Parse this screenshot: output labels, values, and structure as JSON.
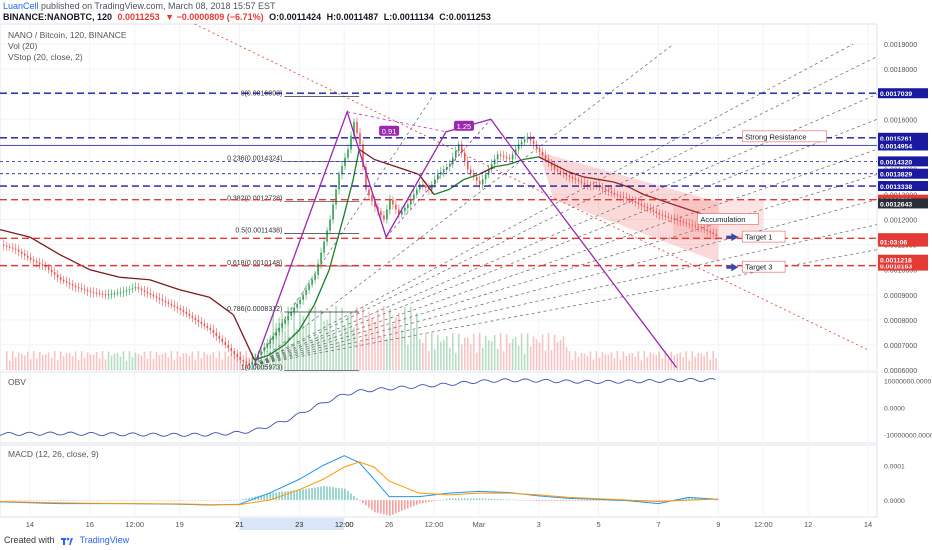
{
  "header": {
    "author": "LuanCell",
    "published_text": "published on TradingView.com, March 08, 2018 15:57 EST",
    "symbol_line": "BINANCE:NANOBTC, 120",
    "last": "0.0011253",
    "change": "▼ −0.0000809 (−6.71%)",
    "open": "O:0.0011424",
    "high": "H:0.0011487",
    "low": "L:0.0011134",
    "close": "C:0.0011253"
  },
  "legends": {
    "title": "NANO / Bitcoin, 120, BINANCE",
    "vol": "Vol (20)",
    "vstop": "VStop (20, close, 2)",
    "obv": "OBV",
    "macd": "MACD (12, 26, close, 9)"
  },
  "footer": {
    "created": "Created with",
    "brand": "TradingView"
  },
  "colors": {
    "up": "#2e9e4f",
    "down": "#ef5350",
    "vstop_up": "#1b7f2a",
    "vstop_down": "#7b1a1a",
    "fib": "#333333",
    "blue_level": "#1a1aa0",
    "red_level": "#e53935",
    "purple": "#9c27b0",
    "macd": "#2196f3",
    "signal": "#ff9800",
    "obv": "#3f51b5"
  },
  "chart_data": {
    "type": "candlestick",
    "y_axis": {
      "range": [
        0.0006,
        0.00198
      ],
      "ticks": [
        "0.0019000",
        "0.0018000",
        "0.0017000",
        "0.0016000",
        "0.0015000",
        "0.0014000",
        "0.0013000",
        "0.0012000",
        "0.0011000",
        "0.0010000",
        "0.0009000",
        "0.0008000",
        "0.0007000",
        "0.0006000"
      ],
      "tick_values": [
        0.0019,
        0.0018,
        0.0017,
        0.0016,
        0.0015,
        0.0014,
        0.0013,
        0.0012,
        0.0011,
        0.001,
        0.0009,
        0.0008,
        0.0007,
        0.0006
      ]
    },
    "x_axis": {
      "labels": [
        "14",
        "16",
        "12:00",
        "19",
        "21",
        "23",
        "12:00",
        "26",
        "12:00",
        "Mar",
        "3",
        "5",
        "7",
        "9",
        "12:00",
        "12",
        "14"
      ],
      "label_days": [
        14,
        16,
        17.5,
        19,
        21,
        23,
        24.5,
        26,
        27.5,
        29,
        31,
        33,
        35,
        37,
        38.5,
        40,
        42
      ],
      "range": [
        13,
        42.3
      ]
    },
    "close_path": {
      "days": [
        13.0,
        13.5,
        14.0,
        14.5,
        15.0,
        15.5,
        16.0,
        16.5,
        17.0,
        17.5,
        18.0,
        18.5,
        19.0,
        19.5,
        20.0,
        20.5,
        21.0,
        21.3,
        21.6,
        22.0,
        22.5,
        23.0,
        23.5,
        24.0,
        24.3,
        24.6,
        24.8,
        25.0,
        25.2,
        25.5,
        25.8,
        26.0,
        26.3,
        26.6,
        27.0,
        27.3,
        27.6,
        28.0,
        28.3,
        28.6,
        29.0,
        29.3,
        29.6,
        30.0,
        30.3,
        30.6,
        31.0,
        31.5,
        32.0,
        32.5,
        33.0,
        33.5,
        34.0,
        34.5,
        35.0,
        35.5,
        36.0,
        36.5,
        37.0
      ],
      "values": [
        0.0011,
        0.00108,
        0.00104,
        0.00101,
        0.00096,
        0.00093,
        0.00091,
        0.0009,
        0.00091,
        0.00093,
        0.0009,
        0.00087,
        0.00084,
        0.0008,
        0.00076,
        0.0007,
        0.00064,
        0.00062,
        0.00066,
        0.00072,
        0.0008,
        0.00088,
        0.00098,
        0.0012,
        0.00138,
        0.00148,
        0.00159,
        0.0015,
        0.00132,
        0.00125,
        0.0012,
        0.00128,
        0.00122,
        0.00126,
        0.00134,
        0.00132,
        0.00138,
        0.00142,
        0.0015,
        0.0014,
        0.00134,
        0.0014,
        0.00146,
        0.00144,
        0.0015,
        0.00153,
        0.00147,
        0.0014,
        0.00137,
        0.00134,
        0.00133,
        0.0013,
        0.00128,
        0.00125,
        0.00122,
        0.0012,
        0.00118,
        0.00116,
        0.00113
      ]
    },
    "vstop": {
      "days": [
        13.0,
        14.0,
        15.0,
        16.0,
        17.0,
        18.0,
        19.0,
        20.0,
        20.8,
        21.5,
        22.0,
        22.5,
        23.0,
        23.5,
        24.0,
        24.5,
        24.8,
        25.0,
        25.5,
        26.0,
        26.5,
        27.0,
        27.5,
        28.0,
        28.5,
        29.0,
        29.5,
        30.0,
        30.5,
        31.0,
        31.5,
        32.0,
        32.5,
        33.0,
        33.5,
        34.0,
        34.5,
        35.0,
        35.5,
        36.0,
        36.5,
        37.0
      ],
      "values": [
        0.00116,
        0.00113,
        0.00106,
        0.001,
        0.00097,
        0.00096,
        0.00092,
        0.00089,
        0.00082,
        0.00064,
        0.00066,
        0.0007,
        0.00076,
        0.00086,
        0.001,
        0.00122,
        0.00136,
        0.00148,
        0.00144,
        0.00142,
        0.0014,
        0.00138,
        0.0013,
        0.00132,
        0.00136,
        0.00138,
        0.00141,
        0.00142,
        0.00144,
        0.00145,
        0.00142,
        0.00139,
        0.00137,
        0.00136,
        0.00135,
        0.00133,
        0.0013,
        0.00128,
        0.00126,
        0.00124,
        0.00122,
        0.0012
      ]
    },
    "fib_levels": [
      {
        "label": "0(0.0016903)",
        "value": 0.0016903
      },
      {
        "label": "0.236(0.0014324)",
        "value": 0.0014324
      },
      {
        "label": "0.382(0.0012728)",
        "value": 0.0012728
      },
      {
        "label": "0.5(0.0011438)",
        "value": 0.0011438
      },
      {
        "label": "0.618(0.0010148)",
        "value": 0.0010148
      },
      {
        "label": "0.786(0.0008312)",
        "value": 0.0008312
      },
      {
        "label": "1(0.0005973)",
        "value": 0.0005973
      }
    ],
    "horizontal_levels": [
      {
        "label": "0.0017039",
        "value": 0.0017039,
        "color": "blue",
        "style": "dashed-heavy"
      },
      {
        "label": "0.0015261",
        "value": 0.0015261,
        "color": "blue",
        "style": "dashed-heavy"
      },
      {
        "label": "0.0014954",
        "value": 0.0014954,
        "color": "blue",
        "style": "solid-thin"
      },
      {
        "label": "0.0014320",
        "value": 0.001432,
        "color": "blue",
        "style": "dashed"
      },
      {
        "label": "0.0013829",
        "value": 0.0013829,
        "color": "blue",
        "style": "dashed"
      },
      {
        "label": "0.0013338",
        "value": 0.0013338,
        "color": "blue",
        "style": "dashed-heavy"
      },
      {
        "label": "0.0012793",
        "value": 0.0012793,
        "color": "red",
        "style": "dashed-heavy"
      },
      {
        "label": "0.0011253",
        "value": 0.0011253,
        "color": "red",
        "style": "dashed-heavy"
      },
      {
        "label": "0.0010163",
        "value": 0.0010163,
        "color": "red",
        "style": "dashed-heavy"
      }
    ],
    "price_badges": [
      {
        "label": "0.0012643",
        "value": 0.0012643,
        "color": "#2a2e39"
      },
      {
        "label": "0.0011253",
        "value": 0.0011253,
        "color": "#e53935"
      },
      {
        "label": "01:03:06",
        "value": 0.001112,
        "color": "#e53935"
      },
      {
        "label": "0.0011218",
        "value": 0.00104,
        "color": "#e53935"
      }
    ],
    "harmonic": {
      "days": [
        21.5,
        24.6,
        25.9,
        27.9,
        29.4,
        31.0,
        35.6
      ],
      "values": [
        0.00062,
        0.00163,
        0.00113,
        0.00155,
        0.0016,
        0.00134,
        0.00061
      ],
      "ratio_labels": [
        {
          "label": "0.91",
          "day": 26.0,
          "value": 0.00155
        },
        {
          "label": "1.25",
          "day": 28.5,
          "value": 0.00157
        }
      ]
    },
    "annotations": [
      {
        "label": "Strong Resistance",
        "day": 37.8,
        "value": 0.00153
      },
      {
        "label": "Accumulation",
        "day": 36.3,
        "value": 0.0012
      },
      {
        "label": "Target 1",
        "day": 37.8,
        "value": 0.00113
      },
      {
        "label": "Target 3",
        "day": 37.8,
        "value": 0.00101
      }
    ],
    "obv": {
      "ticks": [
        "10000000.0000",
        "0.0000",
        "-10000000.0000"
      ],
      "tick_values": [
        10000000,
        0,
        -10000000
      ],
      "range": [
        -12000000,
        12000000
      ],
      "days": [
        13,
        15,
        17,
        19,
        20,
        21,
        21.5,
        22,
        22.5,
        23,
        23.5,
        24,
        24.5,
        25,
        26,
        27,
        28,
        29,
        30,
        31,
        32,
        33,
        34,
        35,
        36,
        37
      ],
      "values": [
        -9800000,
        -9600000,
        -9900000,
        -10100000,
        -10000000,
        -9300000,
        -8500000,
        -6800000,
        -5000000,
        -2500000,
        200000,
        2600000,
        4800000,
        6000000,
        7000000,
        7800000,
        8600000,
        9600000,
        10100000,
        9900000,
        9600000,
        9400000,
        9600000,
        9800000,
        10200000,
        10100000
      ]
    },
    "macd": {
      "ticks": [
        "0.0001",
        "0.0000"
      ],
      "tick_values": [
        0.0001,
        0
      ],
      "range": [
        -4e-05,
        0.00015
      ],
      "days": [
        13,
        15,
        17,
        19,
        20,
        21,
        22,
        23,
        23.8,
        24.5,
        25,
        25.5,
        26,
        27,
        28,
        29,
        30,
        31,
        32,
        33,
        34,
        35,
        36,
        37
      ],
      "macd": [
        -5e-06,
        -1e-05,
        -1e-05,
        -1.2e-05,
        -1.4e-05,
        -1.2e-05,
        2e-05,
        6e-05,
        0.0001,
        0.000128,
        0.000108,
        6e-05,
        1e-05,
        1e-05,
        2e-05,
        2.5e-05,
        2.2e-05,
        1.2e-05,
        5e-06,
        2e-06,
        -2e-06,
        -1e-05,
        8e-06,
        2e-06
      ],
      "signal": [
        -4e-06,
        -8e-06,
        -1e-05,
        -1.1e-05,
        -1.3e-05,
        -1.3e-05,
        0.0,
        3e-05,
        6e-05,
        9.5e-05,
        0.00011,
        9.5e-05,
        5.5e-05,
        2e-05,
        1.5e-05,
        2e-05,
        2e-05,
        1.5e-05,
        8e-06,
        4e-06,
        0.0,
        -4e-06,
        0.0,
        3e-06
      ]
    }
  }
}
